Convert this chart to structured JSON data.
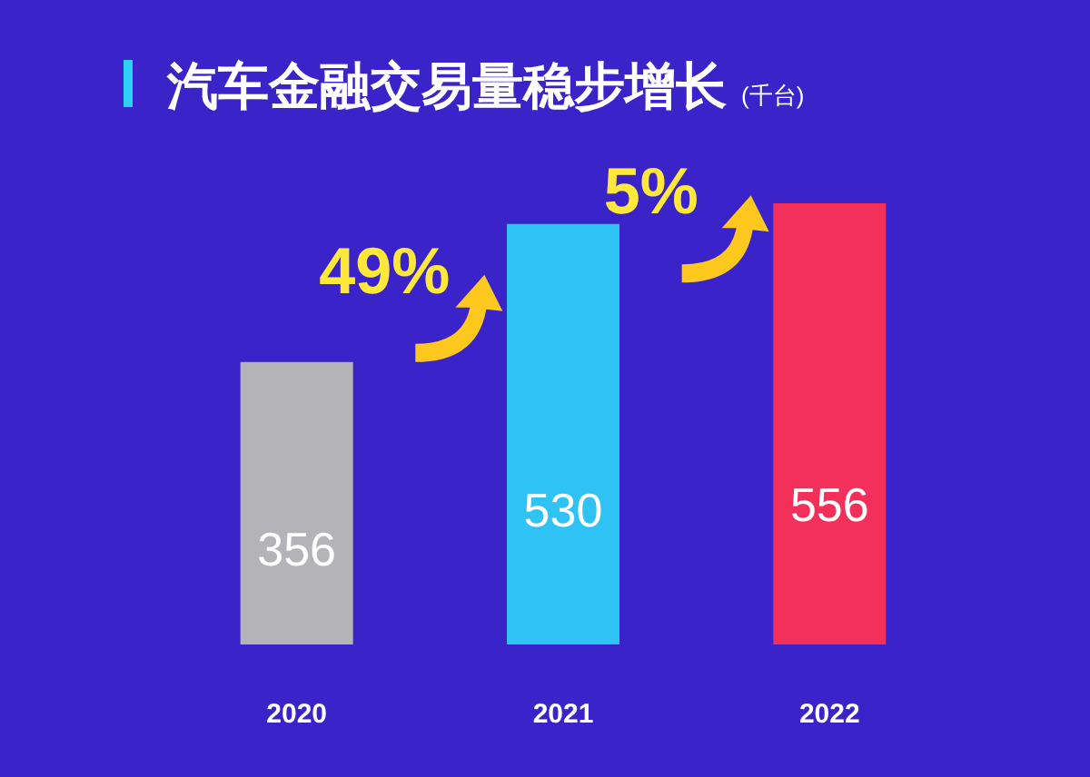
{
  "chart_data": {
    "type": "bar",
    "title": "汽车金融交易量稳步增长",
    "subtitle": "(千台)",
    "categories": [
      "2020",
      "2021",
      "2022"
    ],
    "values": [
      356,
      530,
      556
    ],
    "colors": [
      "#b4b4b8",
      "#2fc3f5",
      "#f2305a"
    ],
    "data_labels": true,
    "annotations": [
      "49%",
      "5%"
    ]
  }
}
